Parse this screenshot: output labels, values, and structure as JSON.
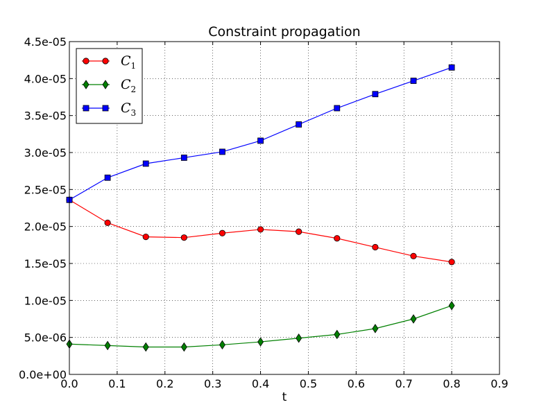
{
  "chart_data": {
    "type": "line",
    "title": "Constraint propagation",
    "xlabel": "t",
    "ylabel": "",
    "xlim": [
      0,
      0.9
    ],
    "ylim": [
      0,
      4.5e-05
    ],
    "grid": true,
    "legend_position": "top-left",
    "x_ticks": [
      0,
      0.1,
      0.2,
      0.3,
      0.4,
      0.5,
      0.6,
      0.7,
      0.8,
      0.9
    ],
    "x_tick_labels": [
      "0.0",
      "0.1",
      "0.2",
      "0.3",
      "0.4",
      "0.5",
      "0.6",
      "0.7",
      "0.8",
      "0.9"
    ],
    "y_ticks": [
      0,
      5e-06,
      1e-05,
      1.5e-05,
      2e-05,
      2.5e-05,
      3e-05,
      3.5e-05,
      4e-05,
      4.5e-05
    ],
    "y_tick_labels": [
      "0.0e+00",
      "5.0e-06",
      "1.0e-05",
      "1.5e-05",
      "2.0e-05",
      "2.5e-05",
      "3.0e-05",
      "3.5e-05",
      "4.0e-05",
      "4.5e-05"
    ],
    "x": [
      0,
      0.08,
      0.16,
      0.24,
      0.32,
      0.4,
      0.48,
      0.56,
      0.64,
      0.72,
      0.8
    ],
    "series": [
      {
        "name": "C",
        "subscript": "1",
        "color": "#ff0000",
        "marker": "circle",
        "values": [
          2.36e-05,
          2.05e-05,
          1.86e-05,
          1.85e-05,
          1.91e-05,
          1.96e-05,
          1.93e-05,
          1.84e-05,
          1.72e-05,
          1.6e-05,
          1.52e-05
        ]
      },
      {
        "name": "C",
        "subscript": "2",
        "color": "#008000",
        "marker": "diamond",
        "values": [
          4.1e-06,
          3.9e-06,
          3.7e-06,
          3.7e-06,
          4e-06,
          4.4e-06,
          4.9e-06,
          5.4e-06,
          6.2e-06,
          7.5e-06,
          9.3e-06
        ]
      },
      {
        "name": "C",
        "subscript": "3",
        "color": "#0000ff",
        "marker": "square",
        "values": [
          2.36e-05,
          2.66e-05,
          2.85e-05,
          2.93e-05,
          3.01e-05,
          3.16e-05,
          3.38e-05,
          3.6e-05,
          3.79e-05,
          3.97e-05,
          4.15e-05
        ]
      }
    ]
  }
}
